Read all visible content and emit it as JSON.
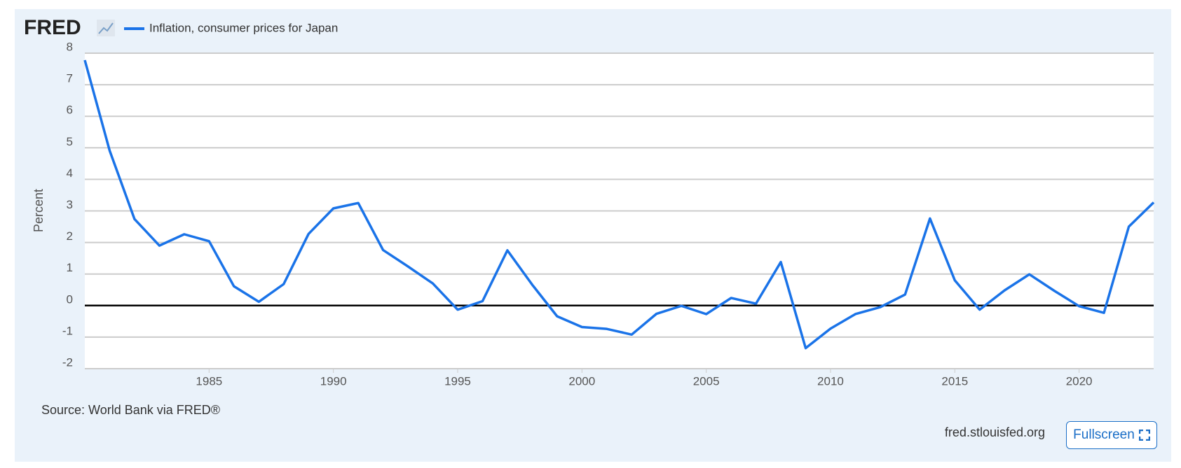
{
  "logo": "FRED",
  "chart_data": {
    "type": "line",
    "y_label": "Percent",
    "x": [
      1980,
      1981,
      1982,
      1983,
      1984,
      1985,
      1986,
      1987,
      1988,
      1989,
      1990,
      1991,
      1992,
      1993,
      1994,
      1995,
      1996,
      1997,
      1998,
      1999,
      2000,
      2001,
      2002,
      2003,
      2004,
      2005,
      2006,
      2007,
      2008,
      2009,
      2010,
      2011,
      2012,
      2013,
      2014,
      2015,
      2016,
      2017,
      2018,
      2019,
      2020,
      2021,
      2022,
      2023
    ],
    "series": [
      {
        "name": "Inflation, consumer prices for Japan",
        "color": "#1a73e8",
        "values": [
          7.78,
          4.91,
          2.74,
          1.9,
          2.26,
          2.04,
          0.61,
          0.12,
          0.68,
          2.27,
          3.08,
          3.25,
          1.76,
          1.24,
          0.7,
          -0.13,
          0.14,
          1.75,
          0.66,
          -0.34,
          -0.68,
          -0.74,
          -0.92,
          -0.26,
          -0.01,
          -0.27,
          0.24,
          0.06,
          1.38,
          -1.35,
          -0.73,
          -0.27,
          -0.05,
          0.35,
          2.76,
          0.8,
          -0.13,
          0.48,
          0.99,
          0.47,
          -0.02,
          -0.23,
          2.5,
          3.27
        ]
      }
    ],
    "xlim": [
      1980,
      2023
    ],
    "xticks": [
      1985,
      1990,
      1995,
      2000,
      2005,
      2010,
      2015,
      2020
    ],
    "ylim": [
      -2,
      8
    ],
    "yticks": [
      -2,
      -1,
      0,
      1,
      2,
      3,
      4,
      5,
      6,
      7,
      8
    ],
    "grid": true
  },
  "source": "Source: World Bank via FRED®",
  "site": "fred.stlouisfed.org",
  "button": "Fullscreen"
}
